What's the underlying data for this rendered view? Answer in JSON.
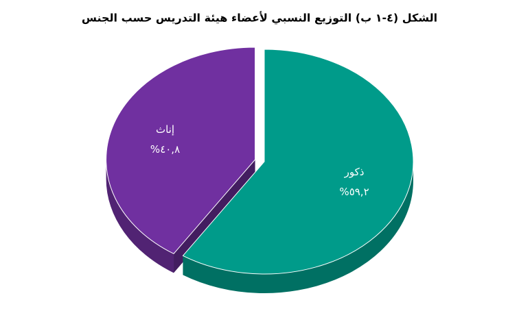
{
  "chart_data": {
    "type": "pie",
    "title": "الشكل (٤-١ ب) التوزيع النسبي لأعضاء هيئة التدريس حسب الجنس",
    "categories": [
      "ذكور",
      "إناث"
    ],
    "values": [
      59.2,
      40.8
    ],
    "value_labels": [
      "%٥٩,٢",
      "%٤٠,٨"
    ],
    "colors": [
      "#009b8a",
      "#7030a0"
    ]
  }
}
